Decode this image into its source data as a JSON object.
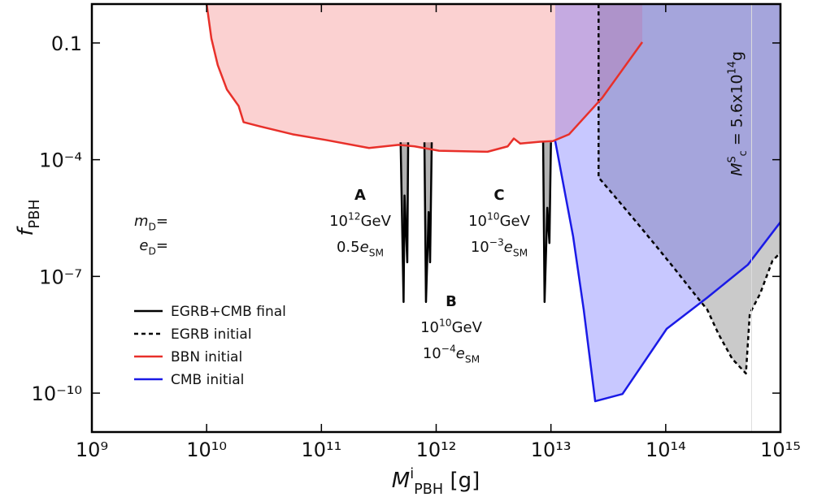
{
  "chart_data": {
    "type": "line",
    "log_x": true,
    "log_y": true,
    "xlim": [
      1000000000.0,
      1000000000000000.0
    ],
    "ylim": [
      1e-11,
      1
    ],
    "xticks": [
      {
        "value": 1000000000.0,
        "label": "10⁹"
      },
      {
        "value": 10000000000.0,
        "label": "10¹⁰"
      },
      {
        "value": 100000000000.0,
        "label": "10¹¹"
      },
      {
        "value": 1000000000000.0,
        "label": "10¹²"
      },
      {
        "value": 10000000000000.0,
        "label": "10¹³"
      },
      {
        "value": 100000000000000.0,
        "label": "10¹⁴"
      },
      {
        "value": 1000000000000000.0,
        "label": "10¹⁵"
      }
    ],
    "yticks": [
      0.1,
      {
        "value": 0.0001,
        "label": "10⁻⁴"
      },
      {
        "value": 1e-07,
        "label": "10⁻⁷"
      },
      {
        "value": 1e-10,
        "label": "10⁻¹⁰"
      }
    ],
    "x_label": [
      {
        "text": "M",
        "style": "italic"
      },
      {
        "text": "i",
        "style": "sup"
      },
      {
        "text": "PBH",
        "style": "sub"
      },
      {
        "text": " [g]"
      }
    ],
    "y_label": [
      {
        "text": "f",
        "style": "italic"
      },
      {
        "text": "PBH",
        "style": "sub"
      }
    ],
    "legend": "lower left",
    "series": [
      {
        "name": "EGRB+CMB final",
        "color": "#000000",
        "fill": "#aaaaaa",
        "x": [
          490000000000.0,
          520000000000.0,
          530000000000.0,
          560000000000.0,
          570000000000.0,
          null,
          790000000000.0,
          815000000000.0,
          860000000000.0,
          885000000000.0,
          915000000000.0,
          null,
          8550000000000.0,
          8800000000000.0,
          9300000000000.0,
          9700000000000.0,
          10000000000000.0
        ],
        "values": [
          0.00028,
          2.2e-08,
          1.2e-05,
          2.3e-07,
          0.00028,
          null,
          0.00028,
          2.2e-08,
          4.5e-06,
          2.3e-07,
          0.00028,
          null,
          0.00028,
          2.2e-08,
          5.8e-06,
          7.2e-07,
          0.00028
        ]
      },
      {
        "name": "EGRB initial",
        "color": "#000000",
        "dash": true,
        "fill": "#666666",
        "fill_to": "top",
        "x": [
          26000000000000.0,
          26000000000000.0,
          38000000000000.0,
          57500000000000.0,
          86000000000000.0,
          120000000000000.0,
          166000000000000.0,
          230000000000000.0,
          290000000000000.0,
          380000000000000.0,
          500000000000000.0,
          540000000000000.0,
          665000000000000.0,
          850000000000000.0,
          1000000000000000.0
        ],
        "values": [
          1,
          3.5e-05,
          9.4e-06,
          2.2e-06,
          5.2e-07,
          1.55e-07,
          4.6e-08,
          1.4e-08,
          3.2e-09,
          7.6e-10,
          3.2e-10,
          1.1e-08,
          3.6e-08,
          2.5e-07,
          4.1e-07
        ]
      },
      {
        "name": "BBN initial",
        "color": "#e8302a",
        "fill": "#f37c7c",
        "fill_to": "top",
        "x": [
          10000000000.0,
          11000000000.0,
          12500000000.0,
          15000000000.0,
          19000000000.0,
          21000000000.0,
          29000000000.0,
          56000000000.0,
          110000000000.0,
          260000000000.0,
          470000000000.0,
          650000000000.0,
          1060000000000.0,
          2800000000000.0,
          4200000000000.0,
          4750000000000.0,
          5400000000000.0,
          8100000000000.0,
          10400000000000.0,
          14400000000000.0,
          28000000000000.0,
          62500000000000.0
        ],
        "values": [
          1,
          0.13,
          0.027,
          0.0064,
          0.0024,
          0.00092,
          0.00072,
          0.00045,
          0.00032,
          0.0002,
          0.00024,
          0.00022,
          0.00017,
          0.00016,
          0.00022,
          0.00035,
          0.00026,
          0.00029,
          0.0003,
          0.00045,
          0.0039,
          0.105
        ]
      },
      {
        "name": "CMB initial",
        "color": "#1a1ae6",
        "fill": "#6060ff",
        "fill_to": "top",
        "x": [
          10900000000000.0,
          15600000000000.0,
          19300000000000.0,
          24300000000000.0,
          42000000000000.0,
          102000000000000.0,
          230000000000000.0,
          520000000000000.0,
          1000000000000000.0
        ],
        "values": [
          0.0003,
          1.07e-06,
          1.4e-08,
          6.2e-11,
          9.5e-11,
          4.5e-09,
          2.85e-08,
          2e-07,
          2.5e-06
        ]
      }
    ],
    "vline": {
      "value": 560000000000000.0,
      "label": [
        {
          "text": "M",
          "style": "italic"
        },
        {
          "text": "S",
          "style": "sup"
        },
        {
          "text": "c",
          "style": "sub"
        },
        {
          "text": " = 5.6x10"
        },
        {
          "text": "14",
          "style": "sup"
        },
        {
          "text": "g"
        }
      ]
    },
    "annotations": [
      {
        "lines": [
          [
            {
              "text": "m",
              "style": "italic"
            },
            {
              "text": "D",
              "style": "sub"
            },
            {
              "text": "="
            }
          ],
          [
            {
              "text": "e",
              "style": "italic"
            },
            {
              "text": "D",
              "style": "sub"
            },
            {
              "text": "="
            }
          ]
        ]
      },
      {
        "lines": [
          [
            {
              "text": "A",
              "style": "bold"
            }
          ],
          [
            {
              "text": "10"
            },
            {
              "text": "12",
              "style": "sup"
            },
            {
              "text": "GeV"
            }
          ],
          [
            {
              "text": "0.5"
            },
            {
              "text": "e",
              "style": "italic"
            },
            {
              "text": "SM",
              "style": "sub"
            }
          ]
        ]
      },
      {
        "lines": [
          [
            {
              "text": "B",
              "style": "bold"
            }
          ],
          [
            {
              "text": "10"
            },
            {
              "text": "10",
              "style": "sup"
            },
            {
              "text": "GeV"
            }
          ],
          [
            {
              "text": "10"
            },
            {
              "text": "−4",
              "style": "sup"
            },
            {
              "text": "e",
              "style": "italic"
            },
            {
              "text": "SM",
              "style": "sub"
            }
          ]
        ]
      },
      {
        "lines": [
          [
            {
              "text": "C",
              "style": "bold"
            }
          ],
          [
            {
              "text": "10"
            },
            {
              "text": "10",
              "style": "sup"
            },
            {
              "text": "GeV"
            }
          ],
          [
            {
              "text": "10"
            },
            {
              "text": "−3",
              "style": "sup"
            },
            {
              "text": "e",
              "style": "italic"
            },
            {
              "text": "SM",
              "style": "sub"
            }
          ]
        ]
      }
    ]
  }
}
